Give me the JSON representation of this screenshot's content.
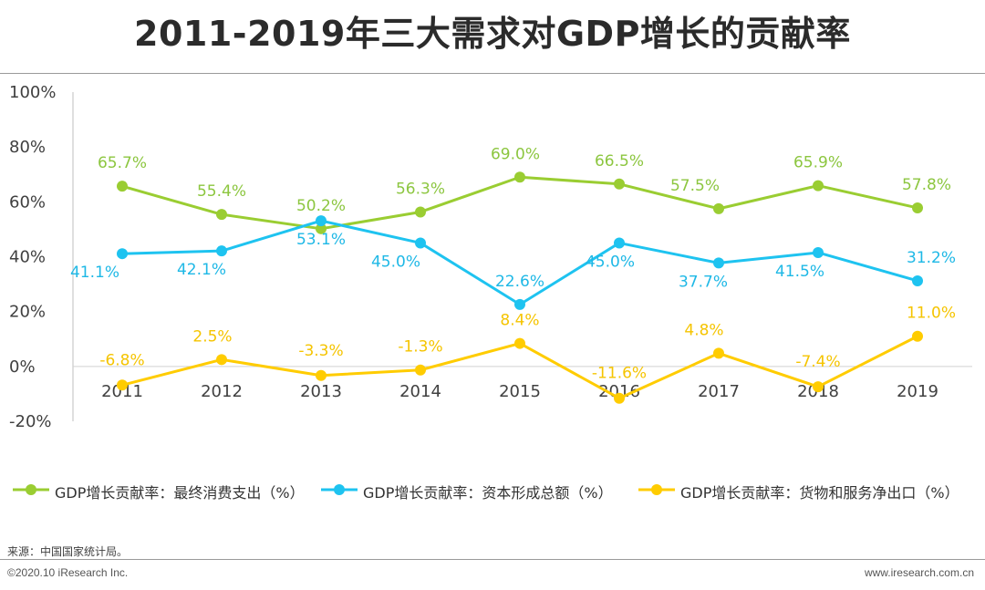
{
  "header": {
    "title": "2011-2019年三大需求对GDP增长的贡献率"
  },
  "chart_data": {
    "type": "line",
    "title": "2011-2019年三大需求对GDP增长的贡献率",
    "categories": [
      "2011",
      "2012",
      "2013",
      "2014",
      "2015",
      "2016",
      "2017",
      "2018",
      "2019"
    ],
    "ylim": [
      -20,
      100
    ],
    "yticks": [
      100,
      80,
      60,
      40,
      20,
      0,
      -20
    ],
    "ytick_labels": [
      "100%",
      "80%",
      "60%",
      "40%",
      "20%",
      "0%",
      "-20%"
    ],
    "legend_position": "bottom",
    "grid": false,
    "series": [
      {
        "name": "GDP增长贡献率：最终消费支出（%）",
        "color": "#9ACD32",
        "label_color": "#8CC63F",
        "values": [
          65.7,
          55.4,
          50.2,
          56.3,
          69.0,
          66.5,
          57.5,
          65.9,
          57.8
        ],
        "labels": [
          "65.7%",
          "55.4%",
          "50.2%",
          "56.3%",
          "69.0%",
          "66.5%",
          "57.5%",
          "65.9%",
          "57.8%"
        ]
      },
      {
        "name": "GDP增长贡献率：资本形成总额（%）",
        "color": "#1EC3F0",
        "label_color": "#1EB8E6",
        "values": [
          41.1,
          42.1,
          53.1,
          45.0,
          22.6,
          45.0,
          37.7,
          41.5,
          31.2
        ],
        "labels": [
          "41.1%",
          "42.1%",
          "53.1%",
          "45.0%",
          "22.6%",
          "45.0%",
          "37.7%",
          "41.5%",
          "31.2%"
        ]
      },
      {
        "name": "GDP增长贡献率：货物和服务净出口（%）",
        "color": "#FFCC00",
        "label_color": "#F5C400",
        "values": [
          -6.8,
          2.5,
          -3.3,
          -1.3,
          8.4,
          -11.6,
          4.8,
          -7.4,
          11.0
        ],
        "labels": [
          "-6.8%",
          "2.5%",
          "-3.3%",
          "-1.3%",
          "8.4%",
          "-11.6%",
          "4.8%",
          "-7.4%",
          "11.0%"
        ]
      }
    ]
  },
  "footer": {
    "source": "来源：中国国家统计局。",
    "copyright": "©2020.10 iResearch Inc.",
    "website": "www.iresearch.com.cn"
  }
}
